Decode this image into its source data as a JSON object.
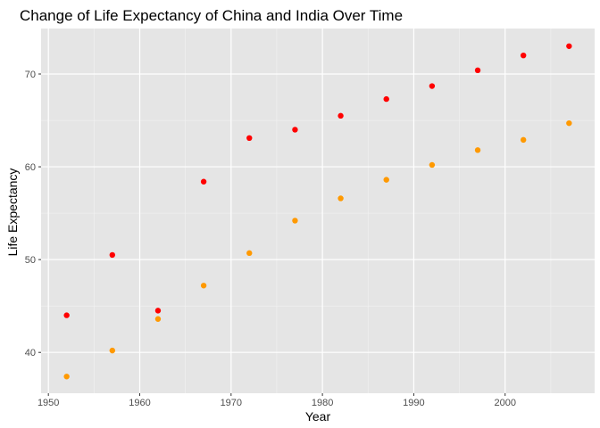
{
  "chart_data": {
    "type": "scatter",
    "title": "Change of Life Expectancy of China and India Over Time",
    "xlabel": "Year",
    "ylabel": "Life Expectancy",
    "xlim": [
      1949.2,
      2009.8
    ],
    "ylim": [
      35.6,
      74.9
    ],
    "xticks": [
      1950,
      1960,
      1970,
      1980,
      1990,
      2000
    ],
    "xtick_labels": [
      "1950",
      "1960",
      "1970",
      "1980",
      "1990",
      "2000"
    ],
    "yticks": [
      40,
      50,
      60,
      70
    ],
    "ytick_labels": [
      "40",
      "50",
      "60",
      "70"
    ],
    "grid": true,
    "legend": "none",
    "x": [
      1952,
      1957,
      1962,
      1967,
      1972,
      1977,
      1982,
      1987,
      1992,
      1997,
      2002,
      2007
    ],
    "series": [
      {
        "color": "#ff0000",
        "values": [
          44.0,
          50.5,
          44.5,
          58.4,
          63.1,
          64.0,
          65.5,
          67.3,
          68.7,
          70.4,
          72.0,
          73.0
        ]
      },
      {
        "color": "#ff9900",
        "values": [
          37.4,
          40.2,
          43.6,
          47.2,
          50.7,
          54.2,
          56.6,
          58.6,
          60.2,
          61.8,
          62.9,
          64.7
        ]
      }
    ]
  }
}
